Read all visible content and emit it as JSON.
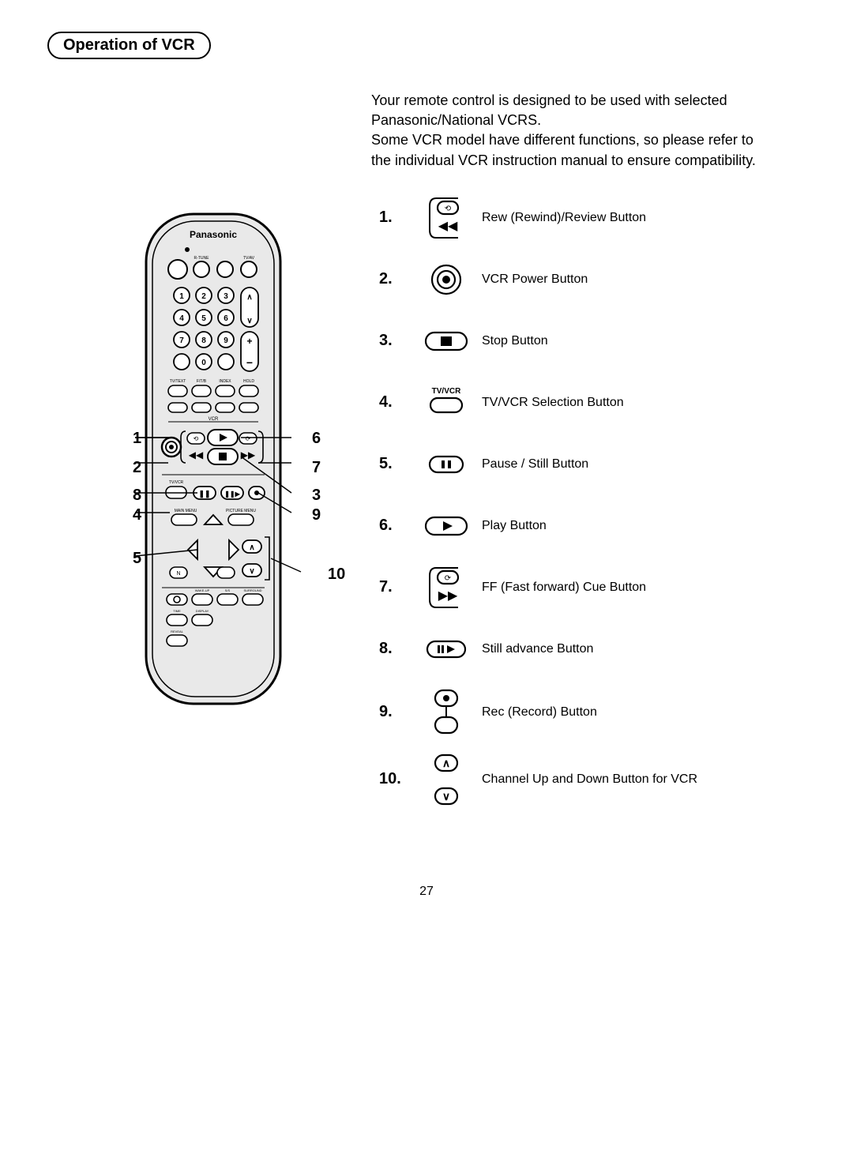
{
  "section_title": "Operation of VCR",
  "intro": "Your remote control is designed to be used with selected Panasonic/National VCRS.\nSome VCR model have different functions, so please refer to the individual VCR instruction manual to ensure compatibility.",
  "remote_brand": "Panasonic",
  "callouts_left": [
    "1",
    "2",
    "8",
    "4",
    "5"
  ],
  "callouts_right": [
    "6",
    "7",
    "3",
    "9",
    "10"
  ],
  "buttons": [
    {
      "num": "1.",
      "icon": "rewind-bracket",
      "desc": "Rew (Rewind)/Review Button"
    },
    {
      "num": "2.",
      "icon": "power-ring",
      "desc": "VCR Power Button"
    },
    {
      "num": "3.",
      "icon": "stop-pill",
      "desc": "Stop Button"
    },
    {
      "num": "4.",
      "icon": "tvvcr-pill",
      "desc": "TV/VCR Selection Button",
      "label": "TV/VCR"
    },
    {
      "num": "5.",
      "icon": "pause-pill",
      "desc": "Pause / Still Button"
    },
    {
      "num": "6.",
      "icon": "play-pill",
      "desc": "Play Button"
    },
    {
      "num": "7.",
      "icon": "ff-bracket",
      "desc": "FF (Fast forward) Cue Button"
    },
    {
      "num": "8.",
      "icon": "stilladv-pill",
      "desc": "Still advance Button"
    },
    {
      "num": "9.",
      "icon": "rec-stack",
      "desc": "Rec (Record) Button"
    },
    {
      "num": "10.",
      "icon": "ch-updown",
      "desc": "Channel Up and Down Button for VCR"
    }
  ],
  "page_number": "27",
  "colors": {
    "ink": "#000000",
    "bg": "#ffffff",
    "remote_fill": "#e9e9e9"
  }
}
